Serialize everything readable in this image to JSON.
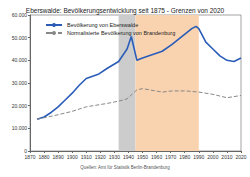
{
  "chart_data": {
    "type": "line",
    "title": "Eberswalde: Bevölkerungsentwicklung seit 1875 - Grenzen von 2020",
    "source": "Quellen: Amt für Statistik Berlin-Brandenburg",
    "series": [
      {
        "name": "Bevölkerung von Eberswalde",
        "color": "#2a5cb8",
        "line_style": "solid",
        "x": [
          1875,
          1880,
          1885,
          1890,
          1895,
          1900,
          1905,
          1910,
          1919,
          1925,
          1933,
          1939,
          1942,
          1946,
          1950,
          1964,
          1971,
          1981,
          1985,
          1988,
          1990,
          1995,
          2000,
          2005,
          2010,
          2015,
          2020
        ],
        "values": [
          14000,
          15000,
          17000,
          19500,
          22500,
          25500,
          29000,
          32000,
          34000,
          36500,
          39500,
          45000,
          50500,
          40000,
          41000,
          44000,
          47000,
          52000,
          54000,
          55000,
          54000,
          48000,
          45000,
          42000,
          40000,
          39500,
          41000
        ]
      },
      {
        "name": "Normalisierte Bevölkerung von Brandenburg",
        "color": "#888888",
        "line_style": "dashed",
        "x": [
          1875,
          1890,
          1900,
          1910,
          1925,
          1933,
          1939,
          1946,
          1950,
          1964,
          1971,
          1981,
          1990,
          2000,
          2010,
          2020
        ],
        "values": [
          14000,
          16000,
          17500,
          19500,
          21000,
          22000,
          23000,
          27000,
          27500,
          26000,
          26500,
          26500,
          26000,
          25000,
          23500,
          24500
        ]
      }
    ],
    "shaded_periods": [
      {
        "from": 1933,
        "to": 1945,
        "color": "#cccccc"
      },
      {
        "from": 1945,
        "to": 1990,
        "color": "#f9d3b0"
      }
    ],
    "xlim": [
      1870,
      2020
    ],
    "xticks": [
      1870,
      1880,
      1890,
      1900,
      1910,
      1920,
      1930,
      1940,
      1950,
      1960,
      1970,
      1980,
      1990,
      2000,
      2010,
      2020
    ],
    "ylim": [
      0,
      60000
    ],
    "yticks": [
      0,
      {
        "value": 10000,
        "label": "10.000"
      },
      {
        "value": 20000,
        "label": "20.000"
      },
      {
        "value": 30000,
        "label": "30.000"
      },
      {
        "value": 40000,
        "label": "40.000"
      },
      {
        "value": 50000,
        "label": "50.000"
      },
      {
        "value": 60000,
        "label": "60.000"
      }
    ],
    "grid": false,
    "legend": "top-left"
  }
}
